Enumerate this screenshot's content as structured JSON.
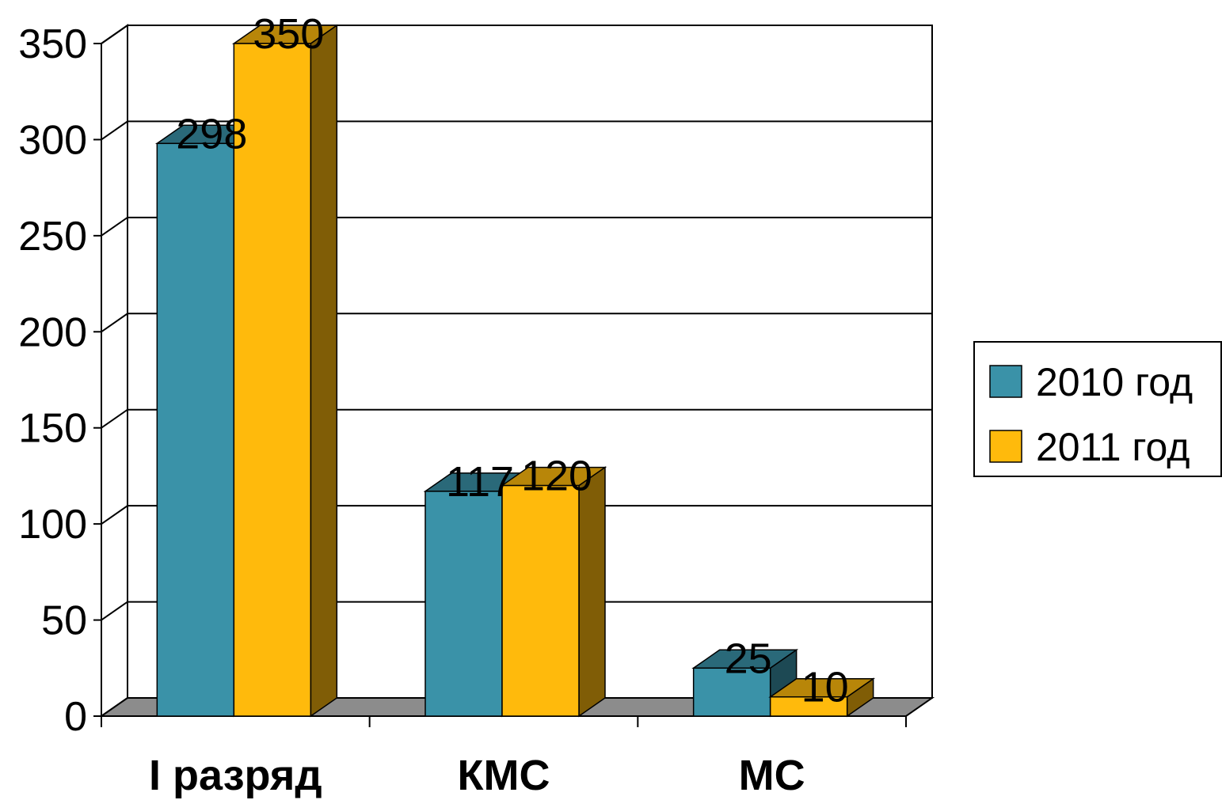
{
  "chart_data": {
    "type": "bar",
    "categories": [
      "I разряд",
      "КМС",
      "МС"
    ],
    "series": [
      {
        "name": "2010 год",
        "values": [
          298,
          117,
          25
        ],
        "color": "#3a92a8"
      },
      {
        "name": "2011 год",
        "values": [
          350,
          120,
          10
        ],
        "color": "#ffba0c"
      }
    ],
    "ylim": [
      0,
      350
    ],
    "yticks": [
      0,
      50,
      100,
      150,
      200,
      250,
      300,
      350
    ],
    "grid": true,
    "legend": "right",
    "style": "3d-clustered-column"
  }
}
